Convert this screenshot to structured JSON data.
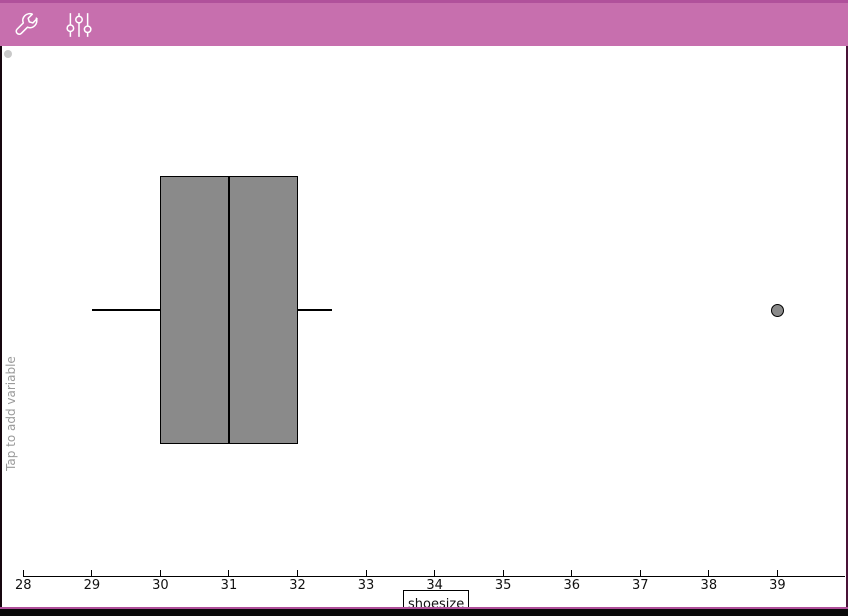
{
  "toolbar": {
    "background_color": "#c76fae",
    "icons": [
      {
        "name": "wrench-icon"
      },
      {
        "name": "sliders-icon"
      }
    ]
  },
  "y_axis": {
    "placeholder": "Tap to add variable"
  },
  "x_axis": {
    "label": "shoesize",
    "tick_labels": [
      "28",
      "29",
      "30",
      "31",
      "32",
      "33",
      "34",
      "35",
      "36",
      "37",
      "38",
      "39"
    ]
  },
  "chart_data": {
    "type": "boxplot",
    "orientation": "horizontal",
    "variable": "shoesize",
    "title": "",
    "xlabel": "shoesize",
    "ylabel": "",
    "x_ticks": [
      28,
      29,
      30,
      31,
      32,
      33,
      34,
      35,
      36,
      37,
      38,
      39
    ],
    "xlim": [
      27.66,
      40.03
    ],
    "stats": {
      "whisker_low": 29,
      "q1": 30,
      "median": 31,
      "q3": 32,
      "whisker_high": 32.5
    },
    "outliers": [
      39
    ],
    "box_fill": "#8a8a8a",
    "grid": false,
    "legend": "none"
  }
}
